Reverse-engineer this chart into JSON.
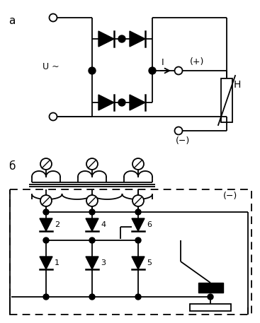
{
  "title_a": "а",
  "title_b": "б",
  "label_U": "U ~",
  "label_I": "I",
  "label_plus": "(+)",
  "label_minus_a": "(−)",
  "label_H": "H",
  "label_minus_b": "(−)",
  "bg_color": "#ffffff",
  "line_color": "#000000",
  "lw": 1.3
}
